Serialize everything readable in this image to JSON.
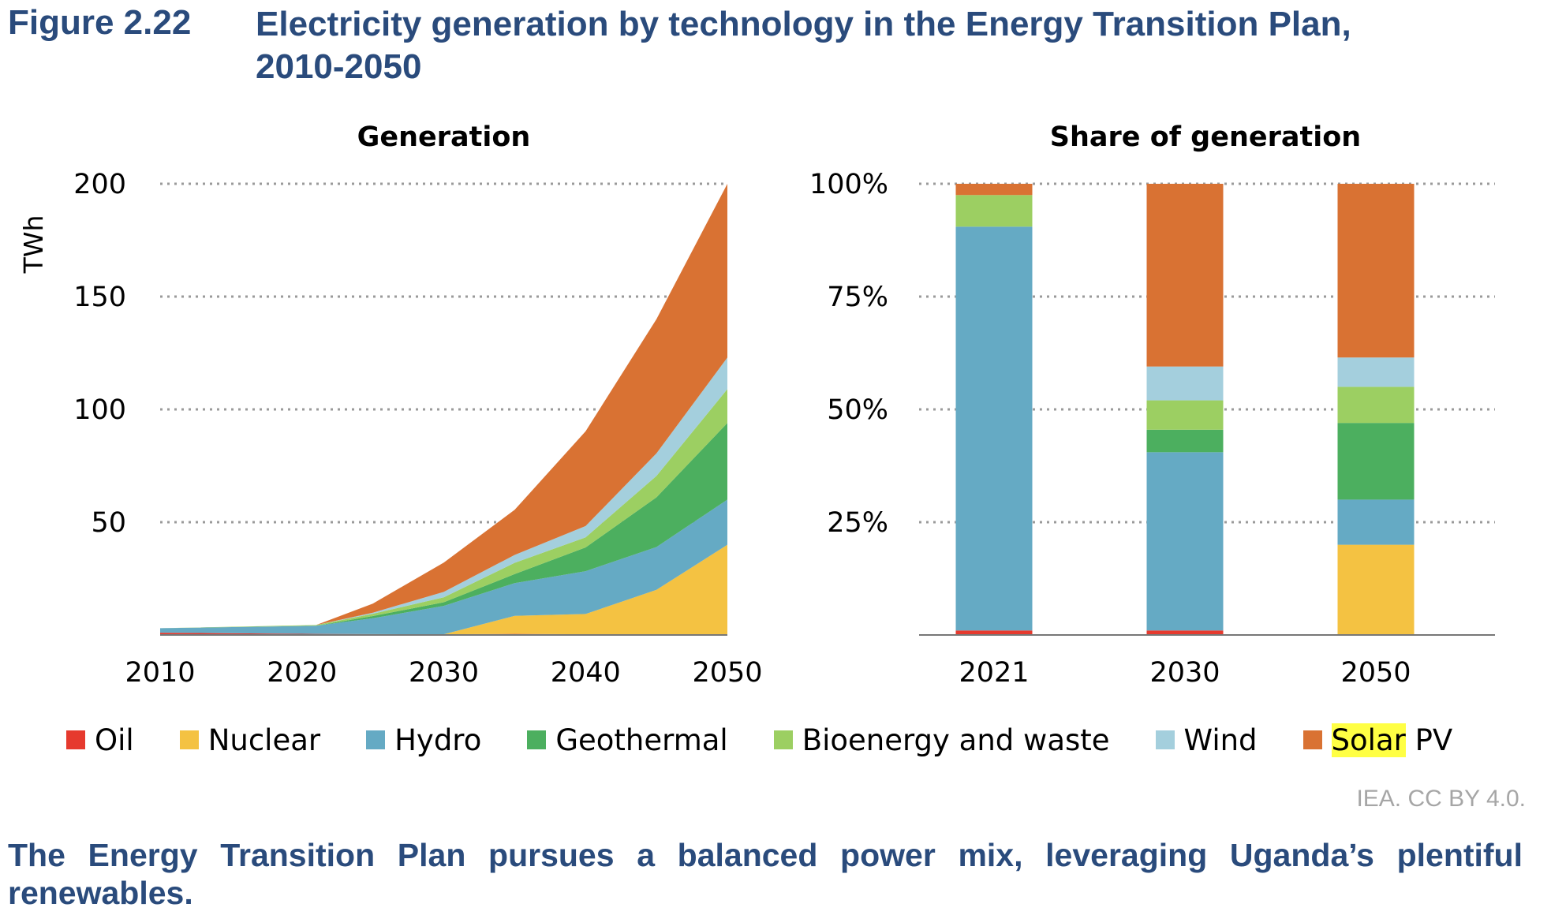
{
  "figure": {
    "number": "Figure 2.22",
    "title_line1": "Electricity generation by technology in the Energy Transition Plan,",
    "title_line2": "2010-2050",
    "credit": "IEA. CC BY 4.0.",
    "caption": "The Energy Transition Plan pursues a balanced power mix, leveraging Uganda’s plentiful renewables."
  },
  "legend": {
    "items": [
      {
        "label": "Oil",
        "color": "#e63a2e"
      },
      {
        "label": "Nuclear",
        "color": "#f4c242"
      },
      {
        "label": "Hydro",
        "color": "#65aac4"
      },
      {
        "label": "Geothermal",
        "color": "#4caf5f"
      },
      {
        "label": "Bioenergy and waste",
        "color": "#9ccf62"
      },
      {
        "label": "Wind",
        "color": "#a4cfdd"
      },
      {
        "label": "Solar PV",
        "color": "#d97233",
        "highlight": "Solar",
        "rest": " PV"
      }
    ]
  },
  "chart_data": [
    {
      "type": "area",
      "title": "Generation",
      "ylabel": "TWh",
      "xlabel": "",
      "ylim": [
        0,
        200
      ],
      "yticks": [
        50,
        100,
        150,
        200
      ],
      "xticks": [
        2010,
        2020,
        2030,
        2040,
        2050
      ],
      "xlim": [
        2010,
        2050
      ],
      "grid": true,
      "stacked": true,
      "x": [
        2010,
        2021,
        2025,
        2030,
        2035,
        2040,
        2045,
        2050
      ],
      "series": [
        {
          "name": "Oil",
          "values": [
            1,
            0.5,
            0.4,
            0.3,
            0.5,
            0.3,
            0,
            0
          ]
        },
        {
          "name": "Nuclear",
          "values": [
            0,
            0,
            0,
            0,
            8,
            9,
            20,
            40
          ]
        },
        {
          "name": "Hydro",
          "values": [
            2,
            3.6,
            7,
            12.6,
            14.5,
            19,
            19,
            20
          ]
        },
        {
          "name": "Geothermal",
          "values": [
            0,
            0,
            1,
            1.6,
            4,
            10.5,
            22,
            34
          ]
        },
        {
          "name": "Bioenergy and waste",
          "values": [
            0,
            0.3,
            1,
            2.2,
            5,
            4.5,
            9.5,
            15
          ]
        },
        {
          "name": "Wind",
          "values": [
            0,
            0,
            0.5,
            2.4,
            3.5,
            5,
            10,
            14
          ]
        },
        {
          "name": "Solar PV",
          "values": [
            0,
            0,
            4,
            13,
            20,
            42,
            59.5,
            77
          ]
        }
      ]
    },
    {
      "type": "bar",
      "title": "Share of generation",
      "stacked": true,
      "categories": [
        "2021",
        "2030",
        "2050"
      ],
      "ylim": [
        0,
        100
      ],
      "yticks": [
        25,
        50,
        75,
        100
      ],
      "ytick_labels": [
        "25%",
        "50%",
        "75%",
        "100%"
      ],
      "grid": true,
      "series": [
        {
          "name": "Oil",
          "values": [
            1,
            1,
            0
          ]
        },
        {
          "name": "Nuclear",
          "values": [
            0,
            0,
            20
          ]
        },
        {
          "name": "Hydro",
          "values": [
            89.5,
            39.5,
            10
          ]
        },
        {
          "name": "Geothermal",
          "values": [
            0,
            5,
            17
          ]
        },
        {
          "name": "Bioenergy and waste",
          "values": [
            7,
            6.5,
            8
          ]
        },
        {
          "name": "Wind",
          "values": [
            0,
            7.5,
            6.5
          ]
        },
        {
          "name": "Solar PV",
          "values": [
            2.5,
            40.5,
            38.5
          ]
        }
      ]
    }
  ]
}
